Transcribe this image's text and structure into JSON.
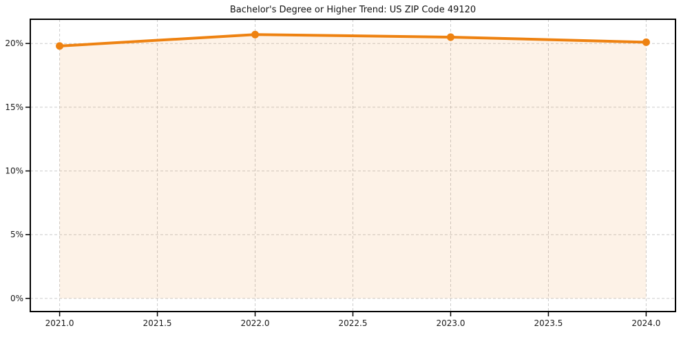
{
  "page": {
    "background": "#ffffff"
  },
  "chart_data": {
    "type": "area",
    "title": "Bachelor's Degree or Higher Trend: US ZIP Code 49120",
    "xlabel": "",
    "ylabel": "",
    "x": [
      2021,
      2022,
      2023,
      2024
    ],
    "values": [
      19.8,
      20.7,
      20.5,
      20.1
    ],
    "fill_baseline": 0,
    "xlim": [
      2020.85,
      2024.15
    ],
    "ylim": [
      -1.03,
      21.9
    ],
    "x_ticks": [
      2021.0,
      2021.5,
      2022.0,
      2022.5,
      2023.0,
      2023.5,
      2024.0
    ],
    "x_tick_labels": [
      "2021.0",
      "2021.5",
      "2022.0",
      "2022.5",
      "2023.0",
      "2023.5",
      "2024.0"
    ],
    "y_ticks": [
      0,
      5,
      10,
      15,
      20
    ],
    "y_tick_labels": [
      "0%",
      "5%",
      "10%",
      "15%",
      "20%"
    ],
    "grid": true,
    "grid_style": "dashed",
    "legend": "none",
    "marker": "circle",
    "colors": {
      "line": "#ee8211",
      "marker": "#ee8211",
      "fill": "rgba(238,130,17,0.10)",
      "grid": "#cccccc",
      "spine": "#000000",
      "text": "#1a1a1a",
      "background": "#ffffff"
    }
  }
}
